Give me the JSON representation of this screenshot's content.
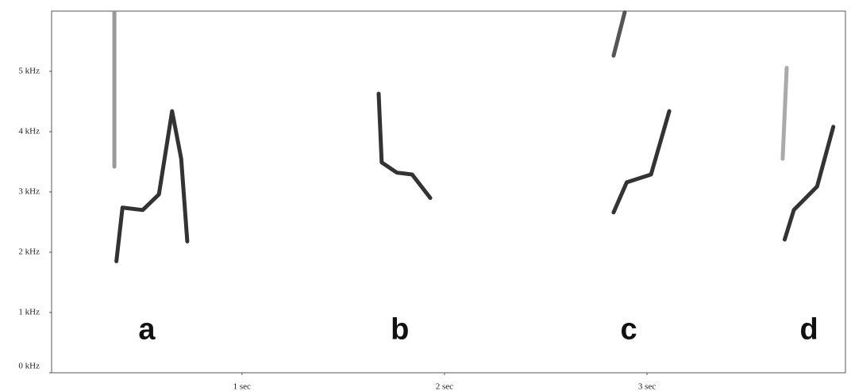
{
  "chart_data": {
    "type": "line",
    "xlim": [
      0.06,
      3.98
    ],
    "ylim": [
      0,
      6
    ],
    "xticks": [
      {
        "value": 1,
        "label": "1  sec"
      },
      {
        "value": 2,
        "label": "2  sec"
      },
      {
        "value": 3,
        "label": "3  sec"
      }
    ],
    "yticks": [
      {
        "value": 0,
        "label": "0 kHz"
      },
      {
        "value": 1,
        "label": "1 kHz"
      },
      {
        "value": 2,
        "label": "2 kHz"
      },
      {
        "value": 3,
        "label": "3 kHz"
      },
      {
        "value": 4,
        "label": "4 kHz"
      },
      {
        "value": 5,
        "label": "5 kHz"
      }
    ],
    "series": [
      {
        "color": "#333333",
        "x": [
          0.38,
          0.41,
          0.51,
          0.59,
          0.655,
          0.7,
          0.73
        ],
        "values": [
          1.85,
          2.74,
          2.7,
          2.96,
          4.34,
          3.55,
          2.18
        ]
      },
      {
        "color": "#999999",
        "x": [
          0.37,
          0.37
        ],
        "values": [
          5.98,
          3.42
        ]
      },
      {
        "color": "#333333",
        "x": [
          1.675,
          1.69,
          1.765,
          1.84,
          1.93
        ],
        "values": [
          4.63,
          3.49,
          3.32,
          3.29,
          2.9
        ]
      },
      {
        "color": "#333333",
        "x": [
          2.835,
          2.9,
          3.02,
          3.11
        ],
        "values": [
          2.66,
          3.16,
          3.29,
          4.34
        ]
      },
      {
        "color": "#555555",
        "x": [
          2.835,
          2.89
        ],
        "values": [
          5.26,
          5.98
        ]
      },
      {
        "color": "#333333",
        "x": [
          3.68,
          3.725,
          3.84,
          3.92
        ],
        "values": [
          2.21,
          2.7,
          3.09,
          4.08
        ]
      },
      {
        "color": "#aaaaaa",
        "x": [
          3.67,
          3.69
        ],
        "values": [
          3.55,
          5.06
        ]
      }
    ],
    "annotations": [
      {
        "text": "a",
        "x": 0.53,
        "y": 0.69
      },
      {
        "text": "b",
        "x": 1.78,
        "y": 0.69
      },
      {
        "text": "c",
        "x": 2.91,
        "y": 0.69
      },
      {
        "text": "d",
        "x": 3.8,
        "y": 0.69
      }
    ]
  }
}
